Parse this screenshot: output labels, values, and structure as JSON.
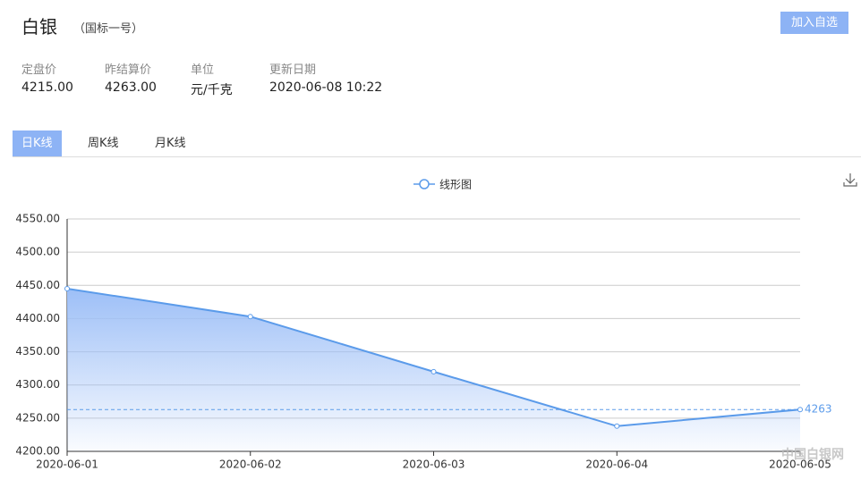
{
  "header": {
    "title": "白银",
    "subtitle": "（国标一号）",
    "button": "加入自选"
  },
  "info": [
    {
      "label": "定盘价",
      "value": "4215.00"
    },
    {
      "label": "昨结算价",
      "value": "4263.00"
    },
    {
      "label": "单位",
      "value": "元/千克"
    },
    {
      "label": "更新日期",
      "value": "2020-06-08 10:22"
    }
  ],
  "tabs": [
    {
      "label": "日K线",
      "active": true
    },
    {
      "label": "周K线",
      "active": false
    },
    {
      "label": "月K线",
      "active": false
    }
  ],
  "chart_data": {
    "type": "line",
    "categories": [
      "2020-06-01",
      "2020-06-02",
      "2020-06-03",
      "2020-06-04",
      "2020-06-05"
    ],
    "series": [
      {
        "name": "线形图",
        "color": "#5b9bea",
        "values": [
          4445,
          4403,
          4320,
          4238,
          4263
        ]
      }
    ],
    "ylim": [
      4200,
      4550
    ],
    "yticks": [
      {
        "value": 4200,
        "label": "4200.00"
      },
      {
        "value": 4250,
        "label": "4250.00"
      },
      {
        "value": 4300,
        "label": "4300.00"
      },
      {
        "value": 4350,
        "label": "4350.00"
      },
      {
        "value": 4400,
        "label": "4400.00"
      },
      {
        "value": 4450,
        "label": "4450.00"
      },
      {
        "value": 4500,
        "label": "4500.00"
      },
      {
        "value": 4550,
        "label": "4550.00"
      }
    ],
    "grid": true,
    "area": true,
    "mark_line": 4263,
    "legend": "top"
  },
  "watermark": "中国白银网"
}
